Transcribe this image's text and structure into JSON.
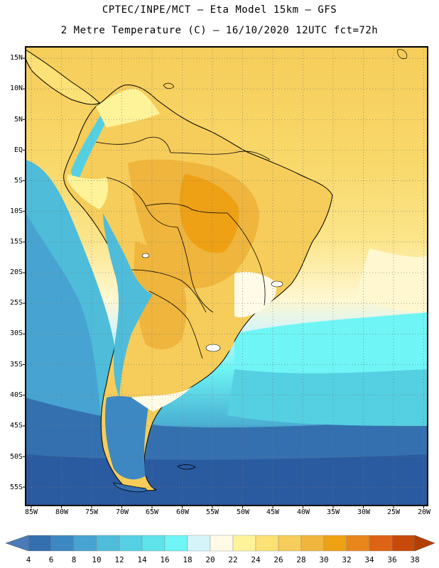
{
  "header": {
    "line1": "CPTEC/INPE/MCT  –  Eta Model 15km – GFS",
    "line2": "2 Metre Temperature (C) – 16/10/2020 12UTC fct=72h"
  },
  "axes": {
    "lat_labels": [
      "15N",
      "10N",
      "5N",
      "EQ",
      "5S",
      "10S",
      "15S",
      "20S",
      "25S",
      "30S",
      "35S",
      "40S",
      "45S",
      "50S",
      "55S"
    ],
    "lon_labels": [
      "85W",
      "80W",
      "75W",
      "70W",
      "65W",
      "60W",
      "55W",
      "50W",
      "45W",
      "40W",
      "35W",
      "30W",
      "25W",
      "20W"
    ]
  },
  "colorbar": {
    "labels": [
      "4",
      "6",
      "8",
      "10",
      "12",
      "14",
      "16",
      "18",
      "20",
      "22",
      "24",
      "26",
      "28",
      "30",
      "32",
      "34",
      "36",
      "38"
    ],
    "colors": [
      "#2a5aa0",
      "#3470b0",
      "#3d88c2",
      "#47a4d2",
      "#4fbcd9",
      "#55d0e2",
      "#5ee3ea",
      "#6ff5f5",
      "#d4f4fa",
      "#fffbe6",
      "#fff39a",
      "#fbe176",
      "#f6cd5a",
      "#efb53c",
      "#eea114",
      "#e8861c",
      "#dd6416",
      "#c64a0a",
      "#a63000"
    ],
    "arrow_left": "#4a7bb7",
    "arrow_right": "#b34000"
  }
}
